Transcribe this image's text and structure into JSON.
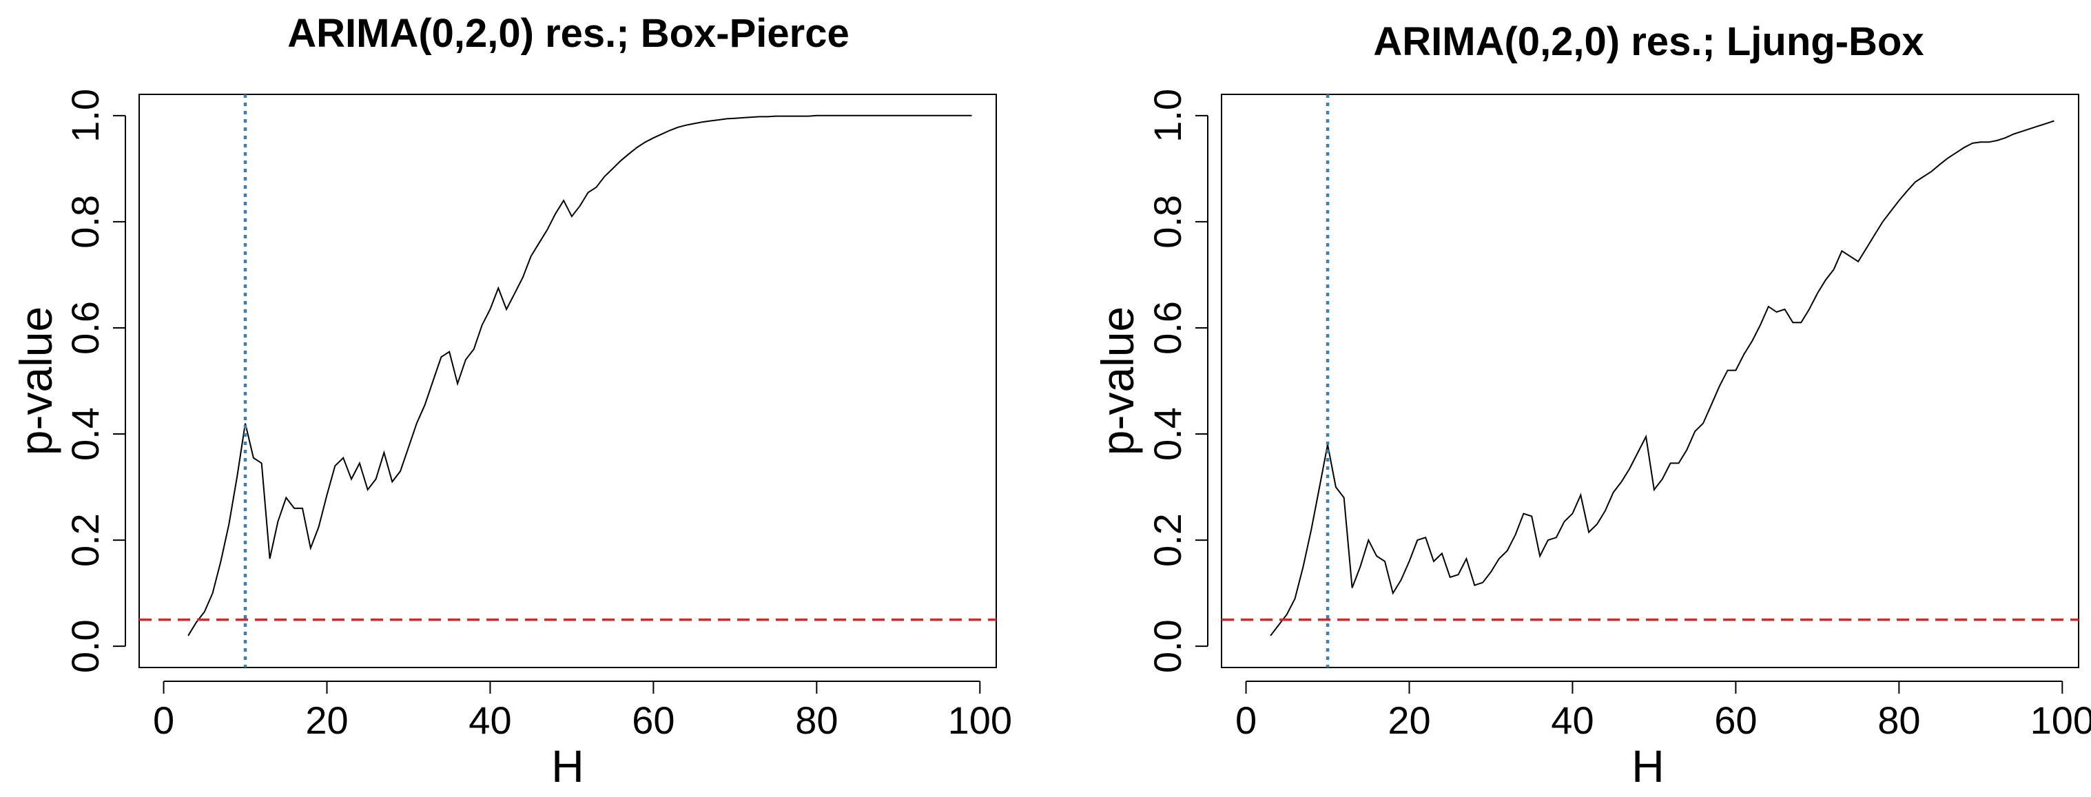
{
  "colors": {
    "background": "#ffffff",
    "series": "#000000",
    "reference_line": "#d62728",
    "lag_line": "#3a7fb3"
  },
  "chart_data": [
    {
      "type": "line",
      "title": "ARIMA(0,2,0) res.;  Box-Pierce",
      "xlabel": "H",
      "ylabel": "p-value",
      "xlim": [
        -3,
        102
      ],
      "ylim": [
        -0.04,
        1.04
      ],
      "x_ticks": [
        0,
        20,
        40,
        60,
        80,
        100
      ],
      "x_tick_labels": [
        "0",
        "20",
        "40",
        "60",
        "80",
        "100"
      ],
      "y_ticks": [
        0.0,
        0.2,
        0.4,
        0.6,
        0.8,
        1.0
      ],
      "y_tick_labels": [
        "0.0",
        "0.2",
        "0.4",
        "0.6",
        "0.8",
        "1.0"
      ],
      "grid": false,
      "series": [
        {
          "x": [
            3,
            4,
            5,
            6,
            7,
            8,
            9,
            10,
            11,
            12,
            13,
            14,
            15,
            16,
            17,
            18,
            19,
            20,
            21,
            22,
            23,
            24,
            25,
            26,
            27,
            28,
            29,
            30,
            31,
            32,
            33,
            34,
            35,
            36,
            37,
            38,
            39,
            40,
            41,
            42,
            43,
            44,
            45,
            46,
            47,
            48,
            49,
            50,
            51,
            52,
            53,
            54,
            55,
            56,
            57,
            58,
            59,
            60,
            61,
            62,
            63,
            64,
            65,
            66,
            67,
            68,
            69,
            70,
            71,
            72,
            73,
            74,
            75,
            76,
            77,
            78,
            79,
            80,
            81,
            82,
            83,
            84,
            85,
            86,
            87,
            88,
            89,
            90,
            91,
            92,
            93,
            94,
            95,
            96,
            97,
            98,
            99
          ],
          "y": [
            0.02,
            0.045,
            0.065,
            0.1,
            0.16,
            0.23,
            0.32,
            0.42,
            0.355,
            0.345,
            0.165,
            0.235,
            0.28,
            0.26,
            0.26,
            0.185,
            0.225,
            0.285,
            0.34,
            0.355,
            0.315,
            0.345,
            0.295,
            0.315,
            0.365,
            0.31,
            0.33,
            0.375,
            0.42,
            0.455,
            0.5,
            0.545,
            0.555,
            0.495,
            0.54,
            0.56,
            0.605,
            0.635,
            0.675,
            0.635,
            0.665,
            0.695,
            0.735,
            0.76,
            0.785,
            0.815,
            0.84,
            0.81,
            0.83,
            0.855,
            0.865,
            0.885,
            0.9,
            0.915,
            0.928,
            0.94,
            0.95,
            0.958,
            0.965,
            0.972,
            0.978,
            0.982,
            0.985,
            0.988,
            0.99,
            0.992,
            0.994,
            0.995,
            0.996,
            0.997,
            0.998,
            0.998,
            0.999,
            0.999,
            0.999,
            0.999,
            0.999,
            1.0,
            1.0,
            1.0,
            1.0,
            1.0,
            1.0,
            1.0,
            1.0,
            1.0,
            1.0,
            1.0,
            1.0,
            1.0,
            1.0,
            1.0,
            1.0,
            1.0,
            1.0,
            1.0,
            1.0
          ]
        }
      ],
      "reference_lines": [
        {
          "orientation": "horizontal",
          "value": 0.05,
          "style": "dashed",
          "color": "#d62728"
        },
        {
          "orientation": "vertical",
          "value": 10,
          "style": "dotted",
          "color": "#3a7fb3"
        }
      ]
    },
    {
      "type": "line",
      "title": "ARIMA(0,2,0) res.;  Ljung-Box",
      "xlabel": "H",
      "ylabel": "p-value",
      "xlim": [
        -3,
        102
      ],
      "ylim": [
        -0.04,
        1.04
      ],
      "x_ticks": [
        0,
        20,
        40,
        60,
        80,
        100
      ],
      "x_tick_labels": [
        "0",
        "20",
        "40",
        "60",
        "80",
        "100"
      ],
      "y_ticks": [
        0.0,
        0.2,
        0.4,
        0.6,
        0.8,
        1.0
      ],
      "y_tick_labels": [
        "0.0",
        "0.2",
        "0.4",
        "0.6",
        "0.8",
        "1.0"
      ],
      "grid": false,
      "series": [
        {
          "x": [
            3,
            4,
            5,
            6,
            7,
            8,
            9,
            10,
            11,
            12,
            13,
            14,
            15,
            16,
            17,
            18,
            19,
            20,
            21,
            22,
            23,
            24,
            25,
            26,
            27,
            28,
            29,
            30,
            31,
            32,
            33,
            34,
            35,
            36,
            37,
            38,
            39,
            40,
            41,
            42,
            43,
            44,
            45,
            46,
            47,
            48,
            49,
            50,
            51,
            52,
            53,
            54,
            55,
            56,
            57,
            58,
            59,
            60,
            61,
            62,
            63,
            64,
            65,
            66,
            67,
            68,
            69,
            70,
            71,
            72,
            73,
            74,
            75,
            76,
            77,
            78,
            79,
            80,
            81,
            82,
            83,
            84,
            85,
            86,
            87,
            88,
            89,
            90,
            91,
            92,
            93,
            94,
            95,
            96,
            97,
            98,
            99
          ],
          "y": [
            0.02,
            0.04,
            0.06,
            0.09,
            0.15,
            0.22,
            0.3,
            0.38,
            0.3,
            0.28,
            0.11,
            0.15,
            0.2,
            0.17,
            0.16,
            0.1,
            0.125,
            0.16,
            0.2,
            0.205,
            0.16,
            0.175,
            0.13,
            0.135,
            0.165,
            0.115,
            0.12,
            0.14,
            0.165,
            0.18,
            0.21,
            0.25,
            0.245,
            0.17,
            0.2,
            0.205,
            0.235,
            0.25,
            0.285,
            0.215,
            0.23,
            0.255,
            0.29,
            0.31,
            0.335,
            0.365,
            0.395,
            0.295,
            0.315,
            0.345,
            0.345,
            0.37,
            0.405,
            0.42,
            0.455,
            0.49,
            0.52,
            0.52,
            0.55,
            0.575,
            0.605,
            0.64,
            0.63,
            0.635,
            0.61,
            0.61,
            0.635,
            0.665,
            0.69,
            0.71,
            0.745,
            0.735,
            0.725,
            0.75,
            0.775,
            0.8,
            0.82,
            0.84,
            0.858,
            0.875,
            0.885,
            0.895,
            0.908,
            0.92,
            0.93,
            0.94,
            0.948,
            0.95,
            0.95,
            0.953,
            0.958,
            0.965,
            0.97,
            0.975,
            0.98,
            0.985,
            0.99
          ]
        }
      ],
      "reference_lines": [
        {
          "orientation": "horizontal",
          "value": 0.05,
          "style": "dashed",
          "color": "#d62728"
        },
        {
          "orientation": "vertical",
          "value": 10,
          "style": "dotted",
          "color": "#3a7fb3"
        }
      ]
    }
  ]
}
